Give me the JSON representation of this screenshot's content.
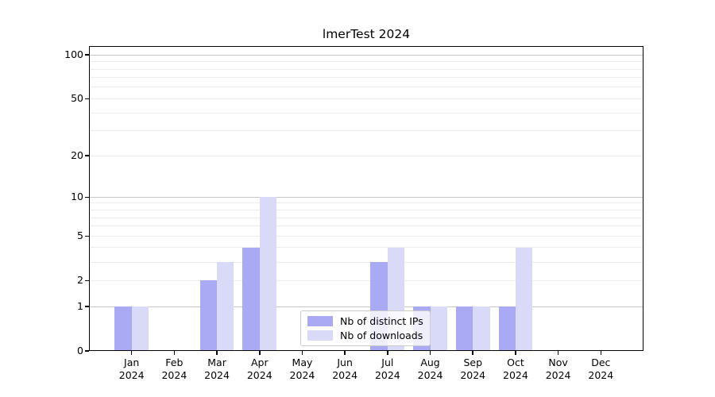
{
  "title": "lmerTest 2024",
  "legend": {
    "items": [
      {
        "label": "Nb of distinct IPs",
        "color": "#a9a9f4"
      },
      {
        "label": "Nb of downloads",
        "color": "#d9d9f8"
      }
    ]
  },
  "chart_data": {
    "type": "bar",
    "title": "lmerTest 2024",
    "categories": [
      "Jan",
      "Feb",
      "Mar",
      "Apr",
      "May",
      "Jun",
      "Jul",
      "Aug",
      "Sep",
      "Oct",
      "Nov",
      "Dec"
    ],
    "year_label": "2024",
    "series": [
      {
        "name": "Nb of distinct IPs",
        "color": "#a9a9f4",
        "values": [
          1,
          0,
          2,
          4,
          0,
          0,
          3,
          1,
          1,
          1,
          0,
          0
        ]
      },
      {
        "name": "Nb of downloads",
        "color": "#d9d9f8",
        "values": [
          1,
          0,
          3,
          10,
          0,
          0,
          4,
          1,
          1,
          4,
          0,
          0
        ]
      }
    ],
    "yscale": "log1p",
    "ylim": [
      0,
      115
    ],
    "ytick_values": [
      100,
      50,
      20,
      10,
      5,
      2,
      1,
      0
    ],
    "major_grid_values": [
      1,
      10,
      100
    ],
    "minor_grid_values": [
      2,
      3,
      4,
      5,
      6,
      7,
      8,
      9,
      20,
      30,
      40,
      50,
      60,
      70,
      80,
      90
    ],
    "grid": true,
    "legend_location": "lower center"
  },
  "colors": {
    "background": "#ffffff",
    "spine": "#000000",
    "major_grid": "#c6c6c6",
    "minor_grid": "#ececec"
  }
}
